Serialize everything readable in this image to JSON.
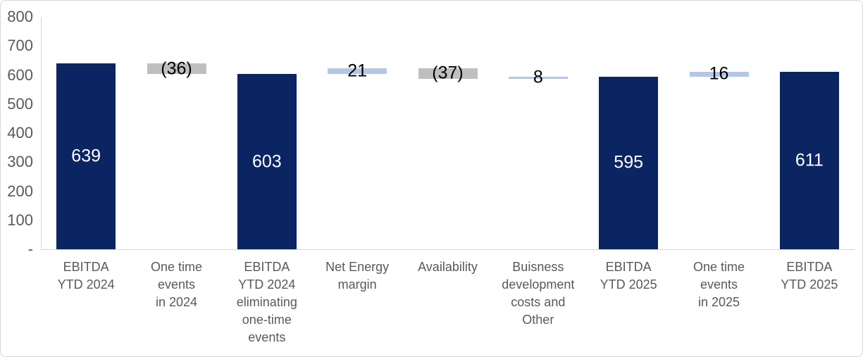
{
  "chart_data": {
    "type": "bar",
    "subtype": "waterfall",
    "title": "",
    "xlabel": "",
    "ylabel": "",
    "ylim": [
      0,
      800
    ],
    "ytick_interval": 100,
    "grid": false,
    "legend": false,
    "yticks": [
      {
        "value": 800,
        "label": "800"
      },
      {
        "value": 700,
        "label": "700"
      },
      {
        "value": 600,
        "label": "600"
      },
      {
        "value": 500,
        "label": "500"
      },
      {
        "value": 400,
        "label": "400"
      },
      {
        "value": 300,
        "label": "300"
      },
      {
        "value": 200,
        "label": "200"
      },
      {
        "value": 100,
        "label": "100"
      },
      {
        "value": 0,
        "label": "-"
      }
    ],
    "categories": [
      "EBITDA\nYTD 2024",
      "One time\nevents\nin 2024",
      "EBITDA\nYTD 2024\neliminating\none-time\nevents",
      "Net Energy\nmargin",
      "Availability",
      "Buisness\ndevelopment\ncosts and\nOther",
      "EBITDA\nYTD 2025",
      "One time\nevents\nin 2025",
      "EBITDA\nYTD 2025"
    ],
    "bars": [
      {
        "category_index": 0,
        "label": "639",
        "value": 639,
        "start": 0,
        "end": 639,
        "kind": "total"
      },
      {
        "category_index": 1,
        "label": "(36)",
        "value": -36,
        "start": 639,
        "end": 603,
        "kind": "decrease"
      },
      {
        "category_index": 2,
        "label": "603",
        "value": 603,
        "start": 0,
        "end": 603,
        "kind": "total"
      },
      {
        "category_index": 3,
        "label": "21",
        "value": 21,
        "start": 603,
        "end": 624,
        "kind": "increase"
      },
      {
        "category_index": 4,
        "label": "(37)",
        "value": -37,
        "start": 624,
        "end": 587,
        "kind": "decrease"
      },
      {
        "category_index": 5,
        "label": "8",
        "value": 8,
        "start": 587,
        "end": 595,
        "kind": "increase"
      },
      {
        "category_index": 6,
        "label": "595",
        "value": 595,
        "start": 0,
        "end": 595,
        "kind": "total"
      },
      {
        "category_index": 7,
        "label": "16",
        "value": 16,
        "start": 595,
        "end": 611,
        "kind": "increase"
      },
      {
        "category_index": 8,
        "label": "611",
        "value": 611,
        "start": 0,
        "end": 611,
        "kind": "total"
      }
    ],
    "colors": {
      "total_bar": "#0b2462",
      "increase_bar": "#b4c7e7",
      "decrease_bar": "#bfbfbf",
      "label_on_total": "#ffffff",
      "label_on_delta": "#000000",
      "axis_line": "#d6d6d6",
      "tick_text": "#595959",
      "category_text": "#595959"
    }
  }
}
